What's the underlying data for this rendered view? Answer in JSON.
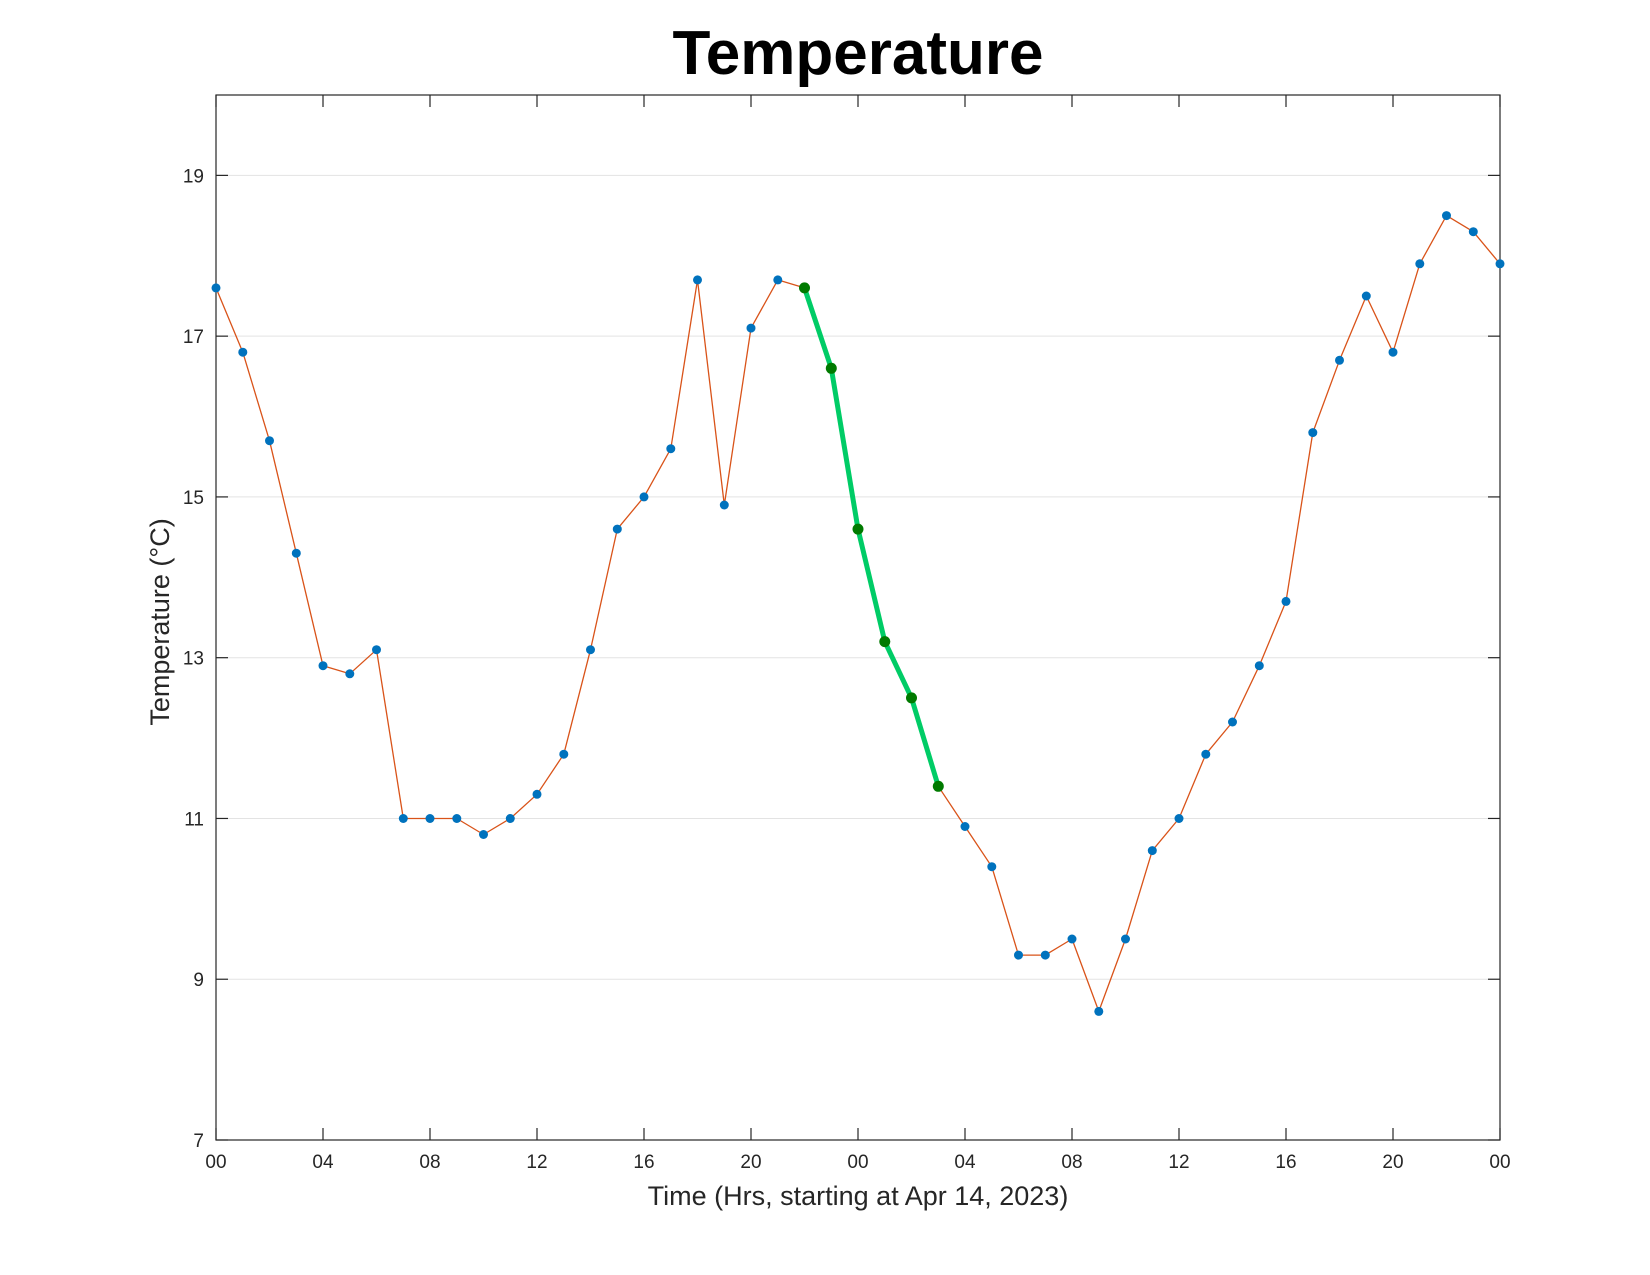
{
  "chart_data": {
    "type": "line",
    "title": "Temperature",
    "xlabel": "Time (Hrs, starting at Apr 14, 2023)",
    "ylabel": "Temperature (°C)",
    "x_unit": "hours",
    "xlim": [
      0,
      48
    ],
    "ylim": [
      7,
      20
    ],
    "x_ticks": [
      0,
      4,
      8,
      12,
      16,
      20,
      24,
      28,
      32,
      36,
      40,
      44,
      48
    ],
    "x_tick_labels": [
      "00",
      "04",
      "08",
      "12",
      "16",
      "20",
      "00",
      "04",
      "08",
      "12",
      "16",
      "20",
      "00"
    ],
    "y_ticks": [
      7,
      9,
      11,
      13,
      15,
      17,
      19
    ],
    "y_tick_labels": [
      "7",
      "9",
      "11",
      "13",
      "15",
      "17",
      "19"
    ],
    "grid": "horizontal",
    "series": [
      {
        "x": [
          0,
          1,
          2,
          3,
          4,
          5,
          6,
          7,
          8,
          9,
          10,
          11,
          12,
          13,
          14,
          15,
          16,
          17,
          18,
          19,
          20,
          21,
          22,
          23,
          24,
          25,
          26,
          27,
          28,
          29,
          30,
          31,
          32,
          33,
          34,
          35,
          36,
          37,
          38,
          39,
          40,
          41,
          42,
          43,
          44,
          45,
          46,
          47,
          48
        ],
        "values": [
          17.6,
          16.8,
          15.7,
          14.3,
          12.9,
          12.8,
          13.1,
          11.0,
          11.0,
          11.0,
          10.8,
          11.0,
          11.3,
          11.8,
          13.1,
          14.6,
          15.0,
          15.6,
          17.7,
          14.9,
          17.1,
          17.7,
          17.6,
          16.6,
          14.6,
          13.2,
          12.5,
          11.4,
          10.9,
          10.4,
          9.3,
          9.3,
          9.5,
          8.6,
          9.5,
          10.6,
          11.0,
          11.8,
          12.2,
          12.9,
          13.7,
          15.8,
          16.7,
          17.5,
          16.8,
          17.9,
          18.5,
          18.3,
          17.9
        ],
        "line_color": "#d95319",
        "marker_color": "#0072bd"
      },
      {
        "x": [
          22,
          23,
          24,
          25,
          26,
          27
        ],
        "values": [
          17.6,
          16.6,
          14.6,
          13.2,
          12.5,
          11.4
        ],
        "line_color": "#00cc66",
        "marker_color": "#007a00"
      }
    ]
  }
}
